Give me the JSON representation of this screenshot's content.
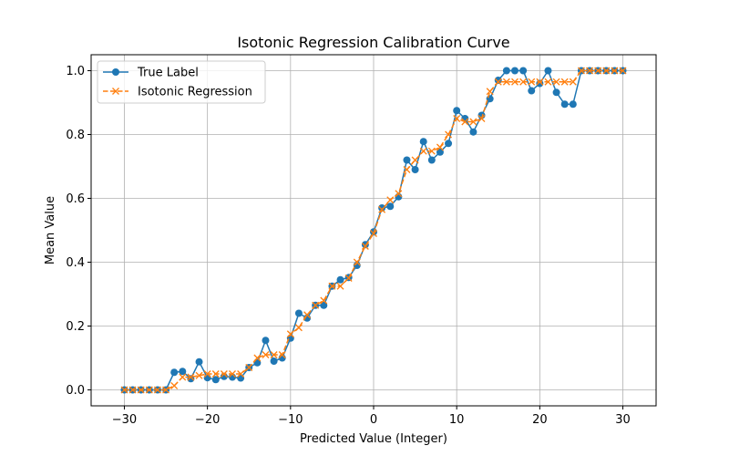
{
  "chart_data": {
    "type": "line",
    "title": "Isotonic Regression Calibration Curve",
    "xlabel": "Predicted Value (Integer)",
    "ylabel": "Mean Value",
    "xlim": [
      -34,
      34
    ],
    "ylim": [
      -0.05,
      1.05
    ],
    "xticks": [
      -30,
      -20,
      -10,
      0,
      10,
      20,
      30
    ],
    "yticks": [
      0.0,
      0.2,
      0.4,
      0.6,
      0.8,
      1.0
    ],
    "xtick_labels": [
      "−30",
      "−20",
      "−10",
      "0",
      "10",
      "20",
      "30"
    ],
    "ytick_labels": [
      "0.0",
      "0.2",
      "0.4",
      "0.6",
      "0.8",
      "1.0"
    ],
    "grid": true,
    "legend_position": "top-left",
    "x": [
      -30,
      -29,
      -28,
      -27,
      -26,
      -25,
      -24,
      -23,
      -22,
      -21,
      -20,
      -19,
      -18,
      -17,
      -16,
      -15,
      -14,
      -13,
      -12,
      -11,
      -10,
      -9,
      -8,
      -7,
      -6,
      -5,
      -4,
      -3,
      -2,
      -1,
      0,
      1,
      2,
      3,
      4,
      5,
      6,
      7,
      8,
      9,
      10,
      11,
      12,
      13,
      14,
      15,
      16,
      17,
      18,
      19,
      20,
      21,
      22,
      23,
      24,
      25,
      26,
      27,
      28,
      29,
      30
    ],
    "series": [
      {
        "name": "True Label",
        "color": "#1f77b4",
        "marker": "circle",
        "linestyle": "solid",
        "values": [
          0,
          0,
          0,
          0,
          0,
          0,
          0.055,
          0.058,
          0.035,
          0.088,
          0.038,
          0.032,
          0.042,
          0.04,
          0.037,
          0.07,
          0.085,
          0.155,
          0.09,
          0.1,
          0.162,
          0.24,
          0.225,
          0.265,
          0.265,
          0.325,
          0.345,
          0.352,
          0.39,
          0.455,
          0.495,
          0.57,
          0.575,
          0.605,
          0.72,
          0.69,
          0.778,
          0.72,
          0.745,
          0.772,
          0.875,
          0.85,
          0.808,
          0.86,
          0.912,
          0.97,
          1.0,
          1.0,
          1.0,
          0.937,
          0.96,
          1.0,
          0.932,
          0.895,
          0.895,
          1.0,
          1.0,
          1.0,
          1.0,
          1.0,
          1.0
        ]
      },
      {
        "name": "Isotonic Regression",
        "color": "#ff7f0e",
        "marker": "x",
        "linestyle": "dashed",
        "values": [
          0,
          0,
          0,
          0,
          0,
          0,
          0.013,
          0.04,
          0.04,
          0.045,
          0.05,
          0.05,
          0.05,
          0.05,
          0.05,
          0.07,
          0.1,
          0.11,
          0.11,
          0.11,
          0.175,
          0.195,
          0.235,
          0.265,
          0.28,
          0.325,
          0.325,
          0.35,
          0.4,
          0.45,
          0.49,
          0.565,
          0.595,
          0.615,
          0.69,
          0.72,
          0.748,
          0.748,
          0.76,
          0.8,
          0.85,
          0.84,
          0.84,
          0.85,
          0.935,
          0.965,
          0.965,
          0.965,
          0.965,
          0.965,
          0.965,
          0.965,
          0.965,
          0.965,
          0.965,
          1.0,
          1.0,
          1.0,
          1.0,
          1.0,
          1.0
        ]
      }
    ]
  }
}
